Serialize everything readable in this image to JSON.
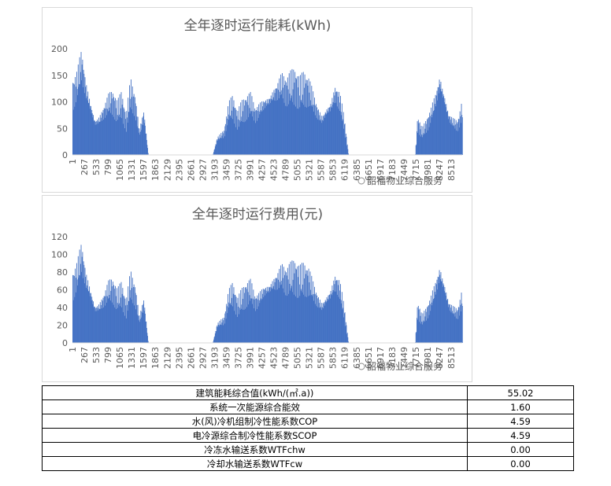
{
  "chart_data": [
    {
      "type": "bar",
      "title": "全年逐时运行能耗(kWh)",
      "ylim": [
        0,
        200
      ],
      "yticks": [
        0,
        50,
        100,
        150,
        200
      ],
      "x_tick_labels": [
        "1",
        "267",
        "533",
        "799",
        "1065",
        "1331",
        "1597",
        "1863",
        "2129",
        "2395",
        "2661",
        "2927",
        "3193",
        "3459",
        "3725",
        "3991",
        "4257",
        "4523",
        "4789",
        "5055",
        "5321",
        "5587",
        "5853",
        "6119",
        "6385",
        "6651",
        "6917",
        "7183",
        "7449",
        "7715",
        "7981",
        "8247",
        "8513"
      ],
      "x_range": [
        1,
        8760
      ],
      "series": [
        {
          "values": [
            [
              1,
              115
            ],
            [
              100,
              130
            ],
            [
              200,
              170
            ],
            [
              300,
              120
            ],
            [
              400,
              90
            ],
            [
              500,
              60
            ],
            [
              600,
              65
            ],
            [
              700,
              80
            ],
            [
              800,
              95
            ],
            [
              900,
              100
            ],
            [
              1000,
              80
            ],
            [
              1100,
              95
            ],
            [
              1200,
              60
            ],
            [
              1300,
              115
            ],
            [
              1400,
              95
            ],
            [
              1500,
              40
            ],
            [
              1600,
              75
            ],
            [
              1700,
              0
            ],
            [
              3150,
              0
            ],
            [
              3250,
              30
            ],
            [
              3400,
              40
            ],
            [
              3500,
              80
            ],
            [
              3600,
              90
            ],
            [
              3700,
              65
            ],
            [
              3800,
              80
            ],
            [
              3900,
              90
            ],
            [
              4000,
              95
            ],
            [
              4100,
              75
            ],
            [
              4200,
              85
            ],
            [
              4300,
              95
            ],
            [
              4400,
              100
            ],
            [
              4500,
              110
            ],
            [
              4600,
              120
            ],
            [
              4700,
              130
            ],
            [
              4800,
              120
            ],
            [
              4900,
              125
            ],
            [
              5000,
              130
            ],
            [
              5100,
              115
            ],
            [
              5200,
              125
            ],
            [
              5300,
              120
            ],
            [
              5400,
              100
            ],
            [
              5500,
              80
            ],
            [
              5600,
              65
            ],
            [
              5700,
              80
            ],
            [
              5800,
              90
            ],
            [
              5900,
              115
            ],
            [
              6000,
              100
            ],
            [
              6100,
              60
            ],
            [
              6200,
              0
            ],
            [
              7700,
              0
            ],
            [
              7750,
              60
            ],
            [
              7850,
              40
            ],
            [
              7950,
              55
            ],
            [
              8050,
              75
            ],
            [
              8150,
              100
            ],
            [
              8250,
              135
            ],
            [
              8350,
              105
            ],
            [
              8450,
              70
            ],
            [
              8550,
              60
            ],
            [
              8650,
              55
            ],
            [
              8760,
              85
            ]
          ]
        }
      ]
    },
    {
      "type": "bar",
      "title": "全年逐时运行费用(元)",
      "ylim": [
        0,
        120
      ],
      "yticks": [
        0,
        20,
        40,
        60,
        80,
        100,
        120
      ],
      "x_tick_labels": [
        "1",
        "267",
        "533",
        "799",
        "1065",
        "1331",
        "1597",
        "1863",
        "2129",
        "2395",
        "2661",
        "2927",
        "3193",
        "3459",
        "3725",
        "3991",
        "4257",
        "4523",
        "4789",
        "5055",
        "5321",
        "5587",
        "5853",
        "6119",
        "6385",
        "6651",
        "6917",
        "7183",
        "7449",
        "7715",
        "7981",
        "8247",
        "8513"
      ],
      "x_range": [
        1,
        8760
      ],
      "series": [
        {
          "values": [
            [
              1,
              65
            ],
            [
              100,
              75
            ],
            [
              200,
              97
            ],
            [
              300,
              70
            ],
            [
              400,
              55
            ],
            [
              500,
              38
            ],
            [
              600,
              40
            ],
            [
              700,
              48
            ],
            [
              800,
              58
            ],
            [
              900,
              60
            ],
            [
              1000,
              48
            ],
            [
              1100,
              55
            ],
            [
              1200,
              38
            ],
            [
              1300,
              65
            ],
            [
              1400,
              55
            ],
            [
              1500,
              25
            ],
            [
              1600,
              45
            ],
            [
              1700,
              0
            ],
            [
              3150,
              0
            ],
            [
              3250,
              20
            ],
            [
              3400,
              25
            ],
            [
              3500,
              48
            ],
            [
              3600,
              55
            ],
            [
              3700,
              40
            ],
            [
              3800,
              48
            ],
            [
              3900,
              55
            ],
            [
              4000,
              58
            ],
            [
              4100,
              45
            ],
            [
              4200,
              50
            ],
            [
              4300,
              58
            ],
            [
              4400,
              60
            ],
            [
              4500,
              65
            ],
            [
              4600,
              70
            ],
            [
              4700,
              75
            ],
            [
              4800,
              70
            ],
            [
              4900,
              72
            ],
            [
              5000,
              75
            ],
            [
              5100,
              68
            ],
            [
              5200,
              72
            ],
            [
              5300,
              70
            ],
            [
              5400,
              58
            ],
            [
              5500,
              48
            ],
            [
              5600,
              40
            ],
            [
              5700,
              48
            ],
            [
              5800,
              55
            ],
            [
              5900,
              68
            ],
            [
              6000,
              60
            ],
            [
              6100,
              35
            ],
            [
              6200,
              0
            ],
            [
              7700,
              0
            ],
            [
              7750,
              38
            ],
            [
              7850,
              25
            ],
            [
              7950,
              33
            ],
            [
              8050,
              45
            ],
            [
              8150,
              60
            ],
            [
              8250,
              78
            ],
            [
              8350,
              62
            ],
            [
              8450,
              42
            ],
            [
              8550,
              36
            ],
            [
              8650,
              33
            ],
            [
              8760,
              50
            ]
          ]
        }
      ]
    }
  ],
  "watermark": "韶福物业综合服务",
  "metrics_table": [
    {
      "label": "建筑能耗综合值(kWh/(㎡.a))",
      "value": "55.02"
    },
    {
      "label": "系统一次能源综合能效",
      "value": "1.60"
    },
    {
      "label": "水(风)冷机组制冷性能系数COP",
      "value": "4.59"
    },
    {
      "label": "电冷源综合制冷性能系数SCOP",
      "value": "4.59"
    },
    {
      "label": "冷冻水输送系数WTFchw",
      "value": "0.00"
    },
    {
      "label": "冷却水输送系数WTFcw",
      "value": "0.00"
    }
  ],
  "colors": {
    "bar": "#4472c4",
    "text": "#595959",
    "border": "#d9d9d9"
  }
}
